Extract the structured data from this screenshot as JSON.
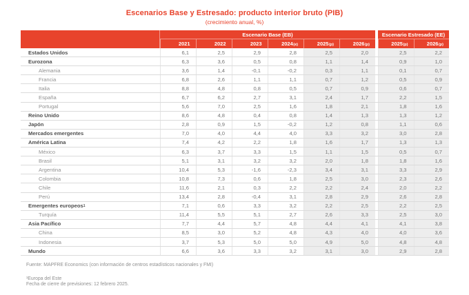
{
  "title": "Escenarios Base y Estresado: producto interior bruto (PIB)",
  "subtitle": "(crecimiento anual, %)",
  "colors": {
    "accent": "#E8432C",
    "column_shade": "#EDEDED"
  },
  "table": {
    "group_eb": "Escenario Base (EB)",
    "group_ee": "Escenario Estresado (EE)",
    "eb_columns": [
      {
        "year": "2021",
        "suffix": "",
        "shaded": false
      },
      {
        "year": "2022",
        "suffix": "",
        "shaded": false
      },
      {
        "year": "2023",
        "suffix": "",
        "shaded": false
      },
      {
        "year": "2024",
        "suffix": "(e)",
        "shaded": false
      },
      {
        "year": "2025",
        "suffix": "(p)",
        "shaded": true
      },
      {
        "year": "2026",
        "suffix": "(p)",
        "shaded": true
      }
    ],
    "ee_columns": [
      {
        "year": "2025",
        "suffix": "(p)",
        "shaded": true
      },
      {
        "year": "2026",
        "suffix": "(p)",
        "shaded": true
      }
    ],
    "rows": [
      {
        "label": "Estados Unidos",
        "sup": "",
        "bold": true,
        "eb": [
          "6,1",
          "2,5",
          "2,9",
          "2,8",
          "2,5",
          "2,0"
        ],
        "ee": [
          "2,5",
          "2,2"
        ]
      },
      {
        "label": "Eurozona",
        "sup": "",
        "bold": true,
        "eb": [
          "6,3",
          "3,6",
          "0,5",
          "0,8",
          "1,1",
          "1,4"
        ],
        "ee": [
          "0,9",
          "1,0"
        ]
      },
      {
        "label": "Alemania",
        "sup": "",
        "bold": false,
        "eb": [
          "3,6",
          "1,4",
          "-0,1",
          "-0,2",
          "0,3",
          "1,1"
        ],
        "ee": [
          "0,1",
          "0,7"
        ]
      },
      {
        "label": "Francia",
        "sup": "",
        "bold": false,
        "eb": [
          "6,8",
          "2,6",
          "1,1",
          "1,1",
          "0,7",
          "1,2"
        ],
        "ee": [
          "0,5",
          "0,9"
        ]
      },
      {
        "label": "Italia",
        "sup": "",
        "bold": false,
        "eb": [
          "8,8",
          "4,8",
          "0,8",
          "0,5",
          "0,7",
          "0,9"
        ],
        "ee": [
          "0,6",
          "0,7"
        ]
      },
      {
        "label": "España",
        "sup": "",
        "bold": false,
        "eb": [
          "6,7",
          "6,2",
          "2,7",
          "3,1",
          "2,4",
          "1,7"
        ],
        "ee": [
          "2,2",
          "1,5"
        ]
      },
      {
        "label": "Portugal",
        "sup": "",
        "bold": false,
        "eb": [
          "5,6",
          "7,0",
          "2,5",
          "1,6",
          "1,8",
          "2,1"
        ],
        "ee": [
          "1,8",
          "1,6"
        ]
      },
      {
        "label": "Reino Unido",
        "sup": "",
        "bold": true,
        "eb": [
          "8,6",
          "4,8",
          "0,4",
          "0,8",
          "1,4",
          "1,3"
        ],
        "ee": [
          "1,3",
          "1,2"
        ]
      },
      {
        "label": "Japón",
        "sup": "",
        "bold": true,
        "eb": [
          "2,8",
          "0,9",
          "1,5",
          "-0,2",
          "1,2",
          "0,8"
        ],
        "ee": [
          "1,1",
          "0,6"
        ]
      },
      {
        "label": "Mercados emergentes",
        "sup": "",
        "bold": true,
        "eb": [
          "7,0",
          "4,0",
          "4,4",
          "4,0",
          "3,3",
          "3,2"
        ],
        "ee": [
          "3,0",
          "2,8"
        ]
      },
      {
        "label": "América Latina",
        "sup": "",
        "bold": true,
        "eb": [
          "7,4",
          "4,2",
          "2,2",
          "1,8",
          "1,6",
          "1,7"
        ],
        "ee": [
          "1,3",
          "1,3"
        ]
      },
      {
        "label": "México",
        "sup": "",
        "bold": false,
        "eb": [
          "6,3",
          "3,7",
          "3,3",
          "1,5",
          "1,1",
          "1,5"
        ],
        "ee": [
          "0,5",
          "0,7"
        ]
      },
      {
        "label": "Brasil",
        "sup": "",
        "bold": false,
        "eb": [
          "5,1",
          "3,1",
          "3,2",
          "3,2",
          "2,0",
          "1,8"
        ],
        "ee": [
          "1,8",
          "1,6"
        ]
      },
      {
        "label": "Argentina",
        "sup": "",
        "bold": false,
        "eb": [
          "10,4",
          "5,3",
          "-1,6",
          "-2,3",
          "3,4",
          "3,1"
        ],
        "ee": [
          "3,3",
          "2,9"
        ]
      },
      {
        "label": "Colombia",
        "sup": "",
        "bold": false,
        "eb": [
          "10,8",
          "7,3",
          "0,6",
          "1,8",
          "2,5",
          "3,0"
        ],
        "ee": [
          "2,3",
          "2,6"
        ]
      },
      {
        "label": "Chile",
        "sup": "",
        "bold": false,
        "eb": [
          "11,6",
          "2,1",
          "0,3",
          "2,2",
          "2,2",
          "2,4"
        ],
        "ee": [
          "2,0",
          "2,2"
        ]
      },
      {
        "label": "Perú",
        "sup": "",
        "bold": false,
        "eb": [
          "13,4",
          "2,8",
          "-0,4",
          "3,1",
          "2,8",
          "2,9"
        ],
        "ee": [
          "2,6",
          "2,8"
        ]
      },
      {
        "label": "Emergentes europeos",
        "sup": "1",
        "bold": true,
        "eb": [
          "7,1",
          "0,6",
          "3,3",
          "3,2",
          "2,2",
          "2,5"
        ],
        "ee": [
          "2,2",
          "2,5"
        ]
      },
      {
        "label": "Turquía",
        "sup": "",
        "bold": false,
        "eb": [
          "11,4",
          "5,5",
          "5,1",
          "2,7",
          "2,6",
          "3,3"
        ],
        "ee": [
          "2,5",
          "3,0"
        ]
      },
      {
        "label": "Asia Pacífico",
        "sup": "",
        "bold": true,
        "eb": [
          "7,7",
          "4,4",
          "5,7",
          "4,8",
          "4,4",
          "4,1"
        ],
        "ee": [
          "4,1",
          "3,8"
        ]
      },
      {
        "label": "China",
        "sup": "",
        "bold": false,
        "eb": [
          "8,5",
          "3,0",
          "5,2",
          "4,8",
          "4,3",
          "4,0"
        ],
        "ee": [
          "4,0",
          "3,6"
        ]
      },
      {
        "label": "Indonesia",
        "sup": "",
        "bold": false,
        "eb": [
          "3,7",
          "5,3",
          "5,0",
          "5,0",
          "4,9",
          "5,0"
        ],
        "ee": [
          "4,8",
          "4,8"
        ]
      },
      {
        "label": "Mundo",
        "sup": "",
        "bold": true,
        "eb": [
          "6,6",
          "3,6",
          "3,3",
          "3,2",
          "3,1",
          "3,0"
        ],
        "ee": [
          "2,9",
          "2,8"
        ]
      }
    ]
  },
  "footer": {
    "source": "Fuente: MAPFRE Economics (con información de centros estadísticos nacionales y FMI)",
    "footnote": "¹Europa del Este",
    "closing_date": "Fecha de cierre de previsiones: 12 febrero 2025."
  }
}
